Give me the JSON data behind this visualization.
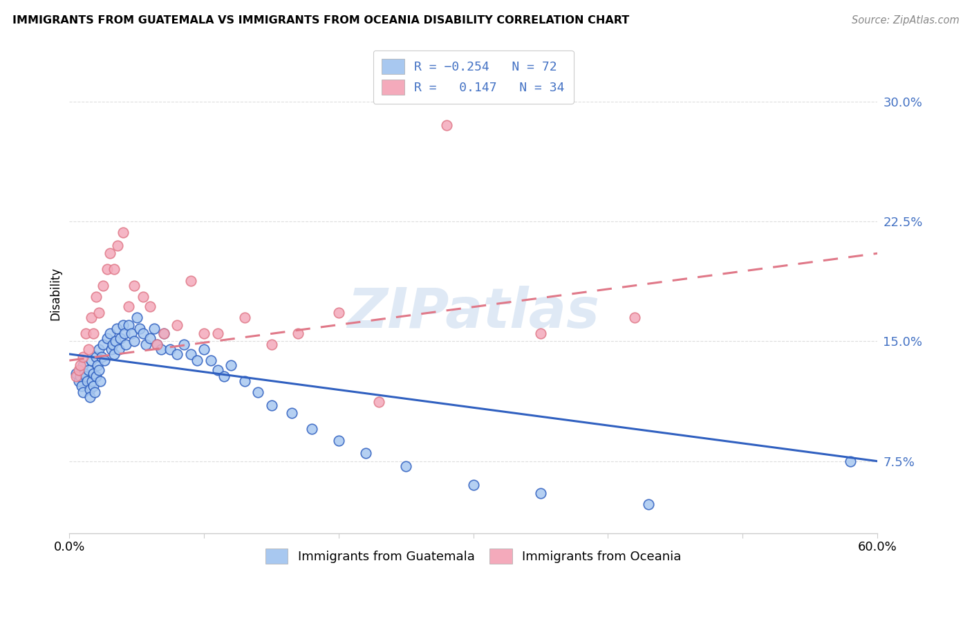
{
  "title": "IMMIGRANTS FROM GUATEMALA VS IMMIGRANTS FROM OCEANIA DISABILITY CORRELATION CHART",
  "source": "Source: ZipAtlas.com",
  "ylabel": "Disability",
  "yticks": [
    0.075,
    0.15,
    0.225,
    0.3
  ],
  "ytick_labels": [
    "7.5%",
    "15.0%",
    "22.5%",
    "30.0%"
  ],
  "xlim": [
    0.0,
    0.6
  ],
  "ylim": [
    0.03,
    0.33
  ],
  "color_blue": "#A8C8F0",
  "color_pink": "#F4AABB",
  "color_blue_line": "#3060C0",
  "color_pink_line": "#E07888",
  "color_axis_label": "#4472C4",
  "watermark": "ZIPatlas",
  "guat_line_y0": 0.142,
  "guat_line_y1": 0.075,
  "oce_line_y0": 0.138,
  "oce_line_y1": 0.205,
  "guatemala_x": [
    0.005,
    0.007,
    0.008,
    0.009,
    0.01,
    0.01,
    0.011,
    0.012,
    0.013,
    0.014,
    0.015,
    0.015,
    0.016,
    0.017,
    0.018,
    0.018,
    0.019,
    0.02,
    0.02,
    0.021,
    0.022,
    0.022,
    0.023,
    0.024,
    0.025,
    0.026,
    0.028,
    0.03,
    0.031,
    0.032,
    0.033,
    0.034,
    0.035,
    0.037,
    0.038,
    0.04,
    0.041,
    0.042,
    0.044,
    0.046,
    0.048,
    0.05,
    0.052,
    0.055,
    0.057,
    0.06,
    0.063,
    0.065,
    0.068,
    0.07,
    0.075,
    0.08,
    0.085,
    0.09,
    0.095,
    0.1,
    0.105,
    0.11,
    0.115,
    0.12,
    0.13,
    0.14,
    0.15,
    0.165,
    0.18,
    0.2,
    0.22,
    0.25,
    0.3,
    0.35,
    0.43,
    0.58
  ],
  "guatemala_y": [
    0.13,
    0.125,
    0.128,
    0.122,
    0.135,
    0.118,
    0.13,
    0.128,
    0.125,
    0.132,
    0.12,
    0.115,
    0.138,
    0.125,
    0.13,
    0.122,
    0.118,
    0.14,
    0.128,
    0.135,
    0.145,
    0.132,
    0.125,
    0.14,
    0.148,
    0.138,
    0.152,
    0.155,
    0.145,
    0.148,
    0.142,
    0.15,
    0.158,
    0.145,
    0.152,
    0.16,
    0.155,
    0.148,
    0.16,
    0.155,
    0.15,
    0.165,
    0.158,
    0.155,
    0.148,
    0.152,
    0.158,
    0.148,
    0.145,
    0.155,
    0.145,
    0.142,
    0.148,
    0.142,
    0.138,
    0.145,
    0.138,
    0.132,
    0.128,
    0.135,
    0.125,
    0.118,
    0.11,
    0.105,
    0.095,
    0.088,
    0.08,
    0.072,
    0.06,
    0.055,
    0.048,
    0.075
  ],
  "oceania_x": [
    0.005,
    0.007,
    0.008,
    0.01,
    0.012,
    0.014,
    0.016,
    0.018,
    0.02,
    0.022,
    0.025,
    0.028,
    0.03,
    0.033,
    0.036,
    0.04,
    0.044,
    0.048,
    0.055,
    0.06,
    0.065,
    0.07,
    0.08,
    0.09,
    0.1,
    0.11,
    0.13,
    0.15,
    0.17,
    0.2,
    0.23,
    0.28,
    0.35,
    0.42
  ],
  "oceania_y": [
    0.128,
    0.132,
    0.135,
    0.14,
    0.155,
    0.145,
    0.165,
    0.155,
    0.178,
    0.168,
    0.185,
    0.195,
    0.205,
    0.195,
    0.21,
    0.218,
    0.172,
    0.185,
    0.178,
    0.172,
    0.148,
    0.155,
    0.16,
    0.188,
    0.155,
    0.155,
    0.165,
    0.148,
    0.155,
    0.168,
    0.112,
    0.285,
    0.155,
    0.165
  ]
}
